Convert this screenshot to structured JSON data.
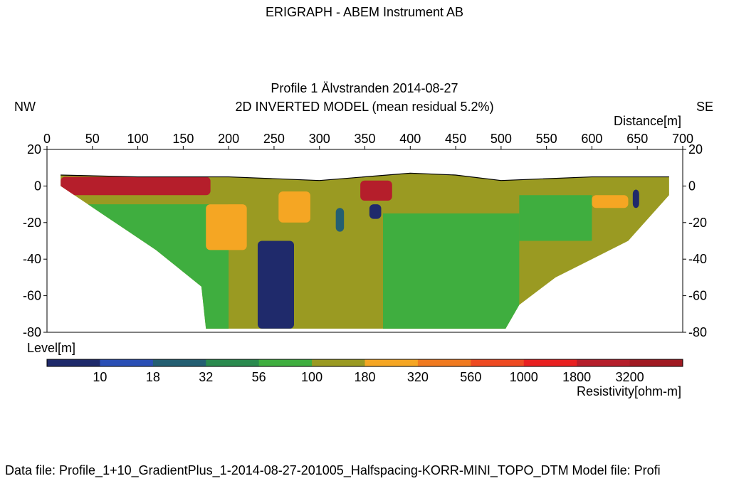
{
  "window": {
    "title": "ERIGRAPH - ABEM Instrument AB"
  },
  "plot": {
    "profile_title": "Profile 1 Älvstranden  2014-08-27",
    "model_title": "2D INVERTED MODEL (mean residual 5.2%)",
    "left_end_label": "NW",
    "right_end_label": "SE"
  },
  "footer": {
    "text": "Data file: Profile_1+10_GradientPlus_1-2014-08-27-201005_Halfspacing-KORR-MINI_TOPO_DTM    Model file: Profi"
  },
  "colors": {
    "palette": [
      "#1f2a6b",
      "#2a4fb5",
      "#245f72",
      "#2a8a4e",
      "#3fae3f",
      "#9a9a22",
      "#f5a623",
      "#f07a20",
      "#ee4a22",
      "#e82020",
      "#b51e2b"
    ]
  },
  "chart_data": {
    "type": "heatmap",
    "xlabel": "Distance[m]",
    "ylabel": "Level[m]",
    "xlim": [
      0,
      700
    ],
    "ylim": [
      -80,
      20
    ],
    "x_ticks": [
      0,
      50,
      100,
      150,
      200,
      250,
      300,
      350,
      400,
      450,
      500,
      550,
      600,
      650,
      700
    ],
    "y_ticks": [
      20,
      0,
      -20,
      -40,
      -60,
      -80
    ],
    "y_ticks_on_both_sides": true,
    "topography": [
      [
        15,
        6
      ],
      [
        100,
        5
      ],
      [
        200,
        5
      ],
      [
        300,
        3
      ],
      [
        400,
        7
      ],
      [
        450,
        6
      ],
      [
        500,
        3
      ],
      [
        600,
        5
      ],
      [
        685,
        5
      ]
    ],
    "model_bottom": [
      [
        15,
        0
      ],
      [
        60,
        -15
      ],
      [
        90,
        -25
      ],
      [
        120,
        -35
      ],
      [
        170,
        -55
      ],
      [
        175,
        -78
      ],
      [
        505,
        -78
      ],
      [
        520,
        -65
      ],
      [
        560,
        -50
      ],
      [
        600,
        -40
      ],
      [
        640,
        -30
      ],
      [
        685,
        -5
      ]
    ],
    "colorbar": {
      "label": "Resistivity[ohm-m]",
      "boundaries": [
        10,
        18,
        32,
        56,
        100,
        180,
        320,
        560,
        1000,
        1800,
        3200
      ],
      "colors": [
        "#1f2a6b",
        "#2a4fb5",
        "#245f72",
        "#2a8a4e",
        "#3fae3f",
        "#9a9a22",
        "#f5a623",
        "#f07a20",
        "#ee4a22",
        "#e82020",
        "#b51e2b",
        "#a01a22"
      ]
    },
    "anomalies": [
      {
        "resistivity": 8,
        "x": [
          232,
          272
        ],
        "y": [
          -78,
          -30
        ]
      },
      {
        "resistivity": 8,
        "x": [
          355,
          368
        ],
        "y": [
          -18,
          -10
        ]
      },
      {
        "resistivity": 8,
        "x": [
          645,
          652
        ],
        "y": [
          -12,
          -2
        ]
      },
      {
        "resistivity": 20,
        "x": [
          318,
          327
        ],
        "y": [
          -25,
          -12
        ]
      },
      {
        "resistivity": 250,
        "x": [
          255,
          290
        ],
        "y": [
          -20,
          -3
        ]
      },
      {
        "resistivity": 250,
        "x": [
          175,
          220
        ],
        "y": [
          -35,
          -10
        ]
      },
      {
        "resistivity": 250,
        "x": [
          600,
          640
        ],
        "y": [
          -12,
          -5
        ]
      },
      {
        "resistivity": 2500,
        "x": [
          15,
          180
        ],
        "y": [
          -5,
          5
        ]
      },
      {
        "resistivity": 2500,
        "x": [
          345,
          380
        ],
        "y": [
          -8,
          3
        ]
      }
    ]
  }
}
